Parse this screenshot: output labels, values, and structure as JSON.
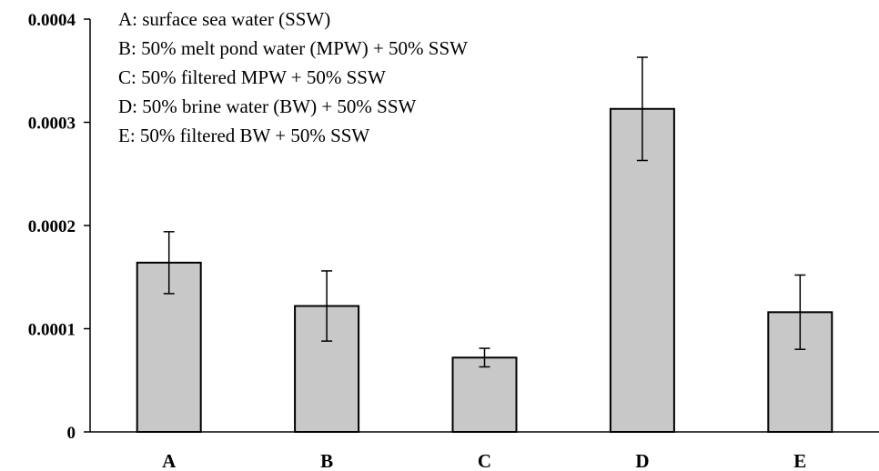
{
  "chart_data": {
    "type": "bar",
    "title": "",
    "xlabel": "",
    "ylabel": "",
    "categories": [
      "A",
      "B",
      "C",
      "D",
      "E"
    ],
    "values": [
      0.000164,
      0.000122,
      7.2e-05,
      0.000313,
      0.000116
    ],
    "error": [
      3e-05,
      3.4e-05,
      9e-06,
      5e-05,
      3.6e-05
    ],
    "ylim": [
      0,
      0.0004
    ],
    "yticks": [
      "0",
      "0.0001",
      "0.0002",
      "0.0003",
      "0.0004"
    ],
    "grid": false,
    "legend_placement": "top-left",
    "annotations": [
      "A: surface sea water (SSW)",
      "B: 50% melt pond water (MPW) + 50% SSW",
      "C: 50% filtered MPW + 50% SSW",
      "D: 50% brine water (BW) + 50% SSW",
      "E: 50% filtered  BW + 50% SSW"
    ],
    "colors": {
      "bar_fill": "#c8c8c8",
      "bar_stroke": "#000000"
    }
  }
}
